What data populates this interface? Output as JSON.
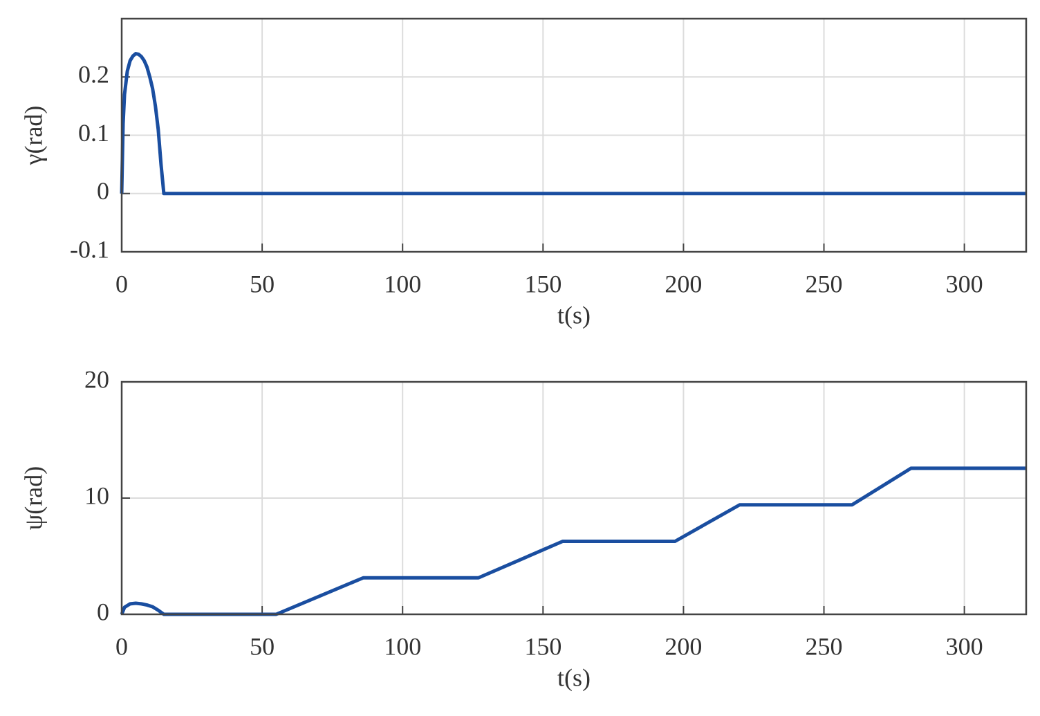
{
  "chart_data": [
    {
      "type": "line",
      "xlabel": "t(s)",
      "ylabel": "γ(rad)",
      "x": [
        0,
        0.5,
        1,
        2,
        3,
        4,
        5,
        6,
        7,
        8,
        9,
        10,
        11,
        12,
        13,
        14,
        15,
        322
      ],
      "values": [
        0,
        0.12,
        0.17,
        0.21,
        0.228,
        0.236,
        0.24,
        0.239,
        0.235,
        0.228,
        0.217,
        0.2,
        0.18,
        0.15,
        0.11,
        0.05,
        0,
        0
      ],
      "color": "#1a4ea0",
      "xlim": [
        0,
        322
      ],
      "xticks": [
        0,
        50,
        100,
        150,
        200,
        250,
        300
      ],
      "ylim": [
        -0.1,
        0.3
      ],
      "yticks": [
        -0.1,
        0,
        0.1,
        0.2
      ],
      "grid": true
    },
    {
      "type": "line",
      "xlabel": "t(s)",
      "ylabel": "ψ(rad)",
      "x": [
        0,
        1,
        3,
        5,
        7,
        9,
        11,
        13,
        15,
        55,
        86,
        127,
        157,
        197,
        220,
        260,
        281,
        322
      ],
      "values": [
        0,
        0.6,
        0.9,
        0.95,
        0.9,
        0.8,
        0.65,
        0.35,
        0,
        0,
        3.14,
        3.14,
        6.28,
        6.28,
        9.42,
        9.42,
        12.57,
        12.57
      ],
      "color": "#1a4ea0",
      "xlim": [
        0,
        322
      ],
      "xticks": [
        0,
        50,
        100,
        150,
        200,
        250,
        300
      ],
      "ylim": [
        0,
        20
      ],
      "yticks": [
        0,
        10,
        20
      ],
      "grid": true
    }
  ]
}
